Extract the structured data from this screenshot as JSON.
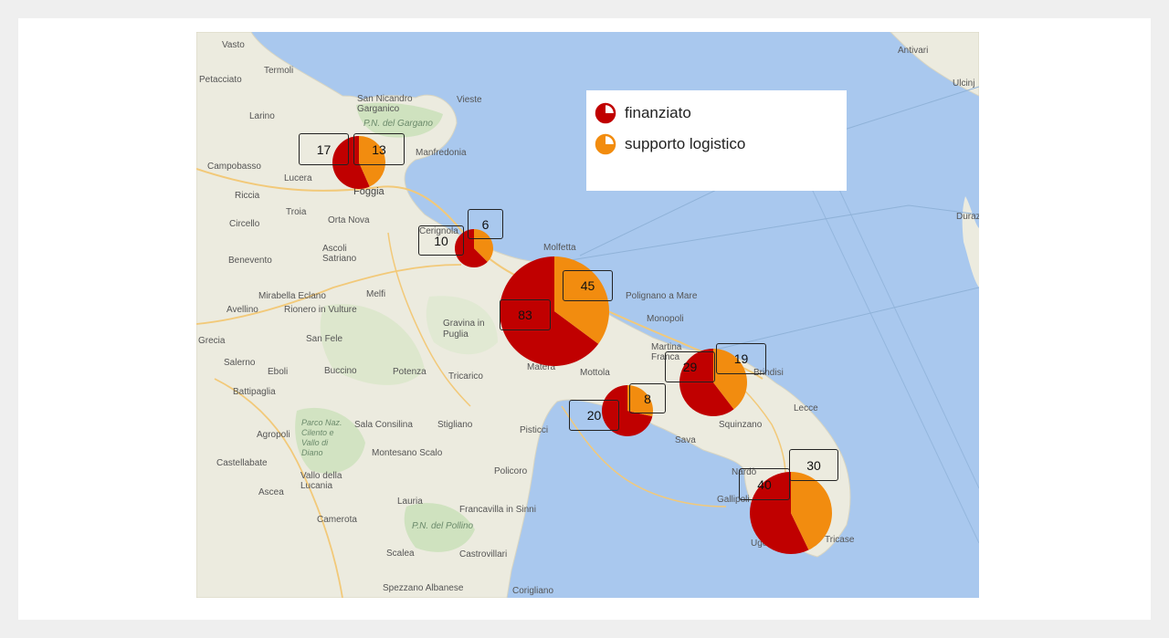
{
  "legend": {
    "items": [
      {
        "label": "finanziato",
        "color": "#c00000"
      },
      {
        "label": "supporto logistico",
        "color": "#f28c0f"
      }
    ]
  },
  "places": [
    {
      "name": "Vasto"
    },
    {
      "name": "Termoli"
    },
    {
      "name": "Petacciato"
    },
    {
      "name": "Larino"
    },
    {
      "name": "San Nicandro Garganico"
    },
    {
      "name": "Vieste"
    },
    {
      "name": "P.N. del Gargano"
    },
    {
      "name": "Manfredonia"
    },
    {
      "name": "Campobasso"
    },
    {
      "name": "Lucera"
    },
    {
      "name": "Foggia"
    },
    {
      "name": "Riccia"
    },
    {
      "name": "Troia"
    },
    {
      "name": "Circello"
    },
    {
      "name": "Orta Nova"
    },
    {
      "name": "Cerignola"
    },
    {
      "name": "Ascoli Satriano"
    },
    {
      "name": "Benevento"
    },
    {
      "name": "Molfetta"
    },
    {
      "name": "Mirabella Eclano"
    },
    {
      "name": "Melfi"
    },
    {
      "name": "Avellino"
    },
    {
      "name": "Rionero in Vulture"
    },
    {
      "name": "Polignano a Mare"
    },
    {
      "name": "Monopoli"
    },
    {
      "name": "Gravina in Puglia"
    },
    {
      "name": "San Fele"
    },
    {
      "name": "Martina Franca"
    },
    {
      "name": "Salerno"
    },
    {
      "name": "Eboli"
    },
    {
      "name": "Buccino"
    },
    {
      "name": "Potenza"
    },
    {
      "name": "Tricarico"
    },
    {
      "name": "Matera"
    },
    {
      "name": "Mottola"
    },
    {
      "name": "Brindisi"
    },
    {
      "name": "Battipaglia"
    },
    {
      "name": "Squinzano"
    },
    {
      "name": "Agropoli"
    },
    {
      "name": "Parco Naz. Cilento e Vallo di Diano"
    },
    {
      "name": "Sala Consilina"
    },
    {
      "name": "Stigliano"
    },
    {
      "name": "Pisticci"
    },
    {
      "name": "Sava"
    },
    {
      "name": "Lecce"
    },
    {
      "name": "Montesano Scalo"
    },
    {
      "name": "Castellabate"
    },
    {
      "name": "Vallo della Lucania"
    },
    {
      "name": "Policoro"
    },
    {
      "name": "Nardò"
    },
    {
      "name": "Gallipoli"
    },
    {
      "name": "Ascea"
    },
    {
      "name": "Lauria"
    },
    {
      "name": "Francavilla in Sinni"
    },
    {
      "name": "Camerota"
    },
    {
      "name": "P.N. del Pollino"
    },
    {
      "name": "Ugento"
    },
    {
      "name": "Tricase"
    },
    {
      "name": "Scalea"
    },
    {
      "name": "Castrovillari"
    },
    {
      "name": "Spezzano Albanese"
    },
    {
      "name": "Corigliano"
    },
    {
      "name": "Antivari"
    },
    {
      "name": "Ulcinj"
    },
    {
      "name": "Durazzo"
    },
    {
      "name": "Grecia"
    }
  ],
  "pies": [
    {
      "finanziato": 17,
      "supporto_logistico": 13
    },
    {
      "finanziato": 10,
      "supporto_logistico": 6
    },
    {
      "finanziato": 83,
      "supporto_logistico": 45
    },
    {
      "finanziato": 29,
      "supporto_logistico": 19
    },
    {
      "finanziato": 20,
      "supporto_logistico": 8
    },
    {
      "finanziato": 40,
      "supporto_logistico": 30
    }
  ],
  "labels": {
    "foggia_fin": "17",
    "foggia_sup": "13",
    "cerignola_fin": "10",
    "cerignola_sup": "6",
    "bari_fin": "83",
    "bari_sup": "45",
    "brindisi_fin": "29",
    "brindisi_sup": "19",
    "taranto_fin": "20",
    "taranto_sup": "8",
    "lecce_fin": "40",
    "lecce_sup": "30"
  }
}
